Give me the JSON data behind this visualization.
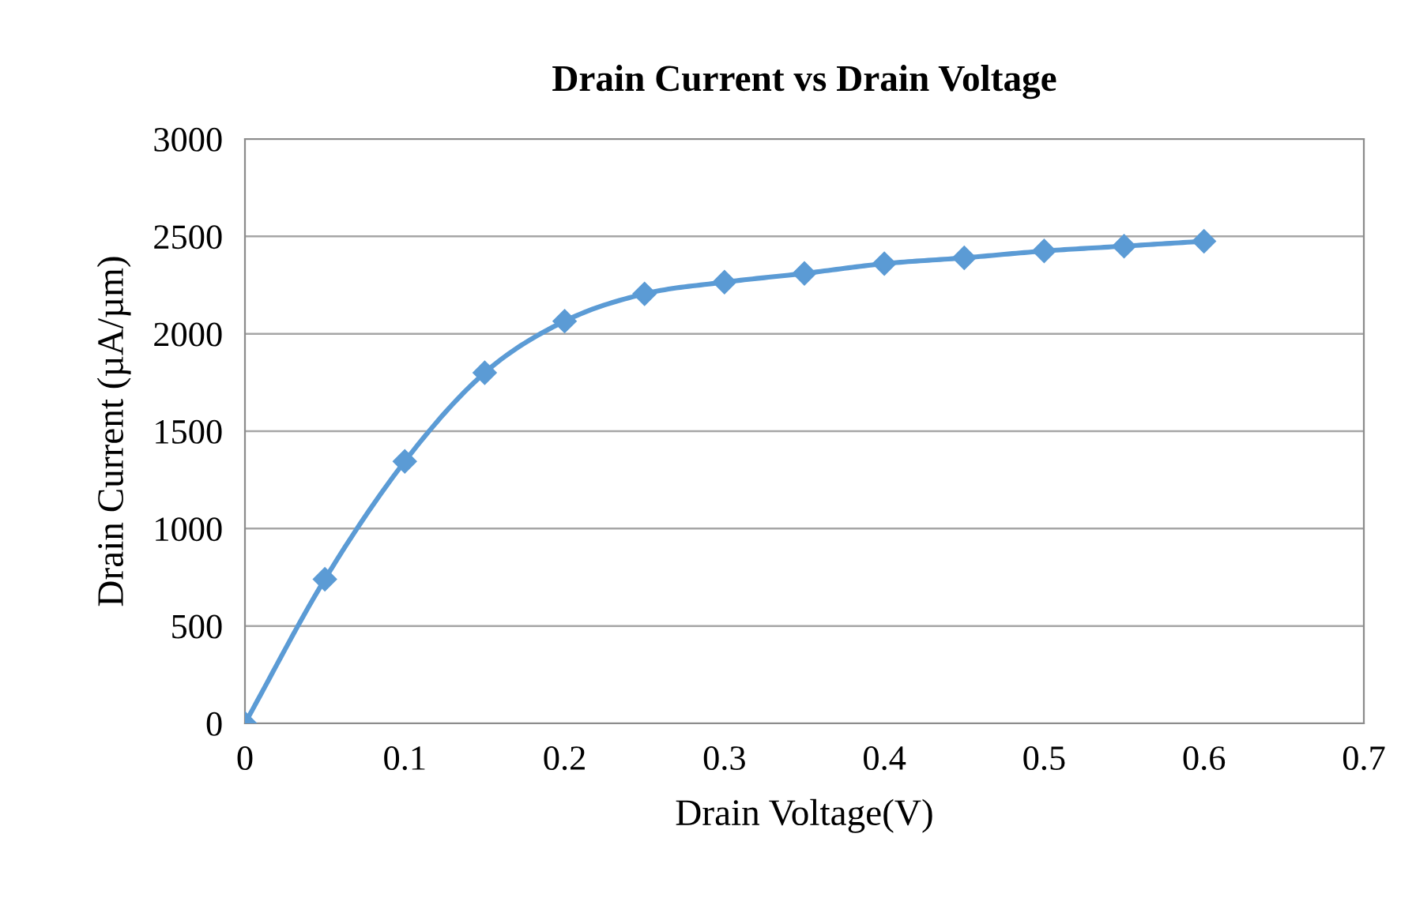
{
  "chart_data": {
    "type": "line",
    "title": "Drain Current vs Drain Voltage",
    "xlabel": "Drain Voltage(V)",
    "ylabel": "Drain Current (µA/µm)",
    "x": [
      0,
      0.05,
      0.1,
      0.15,
      0.2,
      0.25,
      0.3,
      0.35,
      0.4,
      0.45,
      0.5,
      0.55,
      0.6
    ],
    "series": [
      {
        "color": "#5b9bd5",
        "values": [
          0,
          740,
          1345,
          1800,
          2065,
          2205,
          2265,
          2310,
          2360,
          2390,
          2425,
          2450,
          2475
        ]
      }
    ],
    "xlim": [
      0,
      0.7
    ],
    "xticks": [
      0,
      0.1,
      0.2,
      0.3,
      0.4,
      0.5,
      0.6,
      0.7
    ],
    "ylim": [
      0,
      3000
    ],
    "yticks": [
      0,
      500,
      1000,
      1500,
      2000,
      2500,
      3000
    ],
    "grid": "y",
    "marker": "diamond",
    "line_style": "solid",
    "legend": false
  }
}
